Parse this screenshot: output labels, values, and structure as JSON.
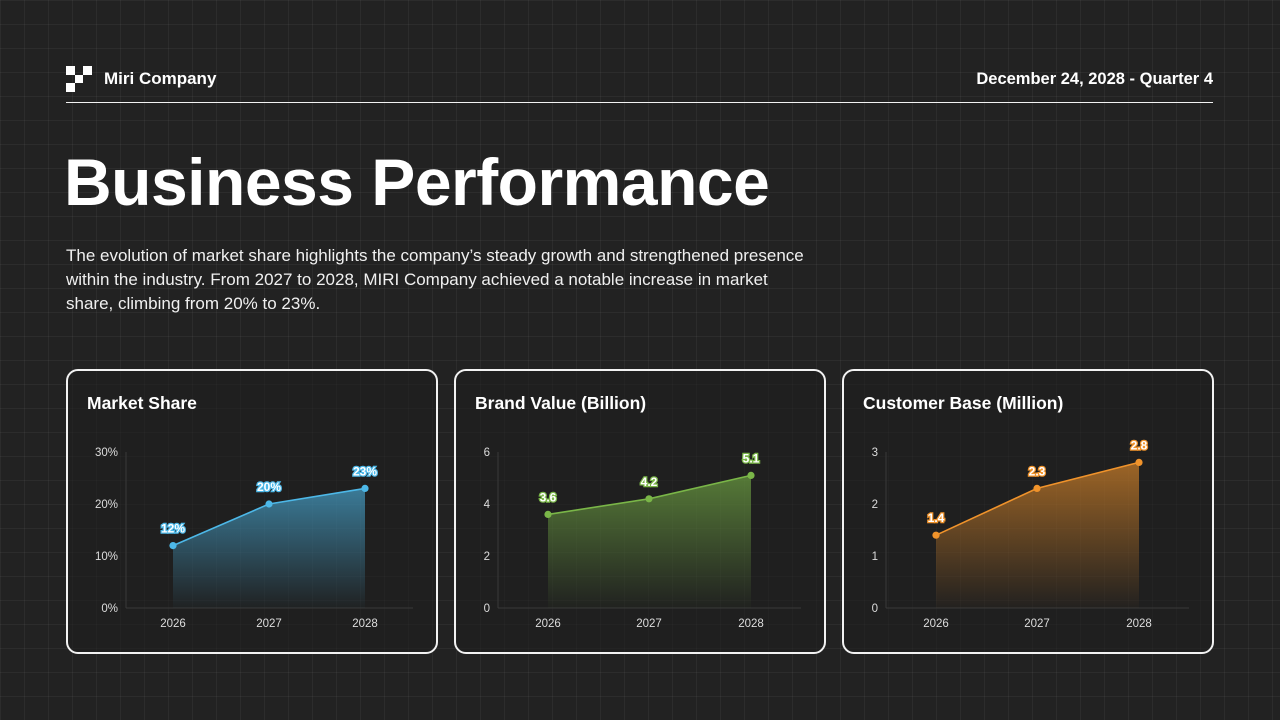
{
  "header": {
    "brand_name": "Miri Company",
    "logo_icon": "pixel-logo-icon",
    "date": "December 24, 2028 - Quarter 4"
  },
  "page": {
    "title": "Business Performance",
    "description": "The evolution of market share highlights the company’s steady growth and strengthened presence within the industry. From 2027 to 2028, MIRI Company achieved a notable increase in market share, climbing from 20% to 23%."
  },
  "colors": {
    "background": "#222222",
    "market_share": "#4db8e8",
    "brand_value": "#7ab648",
    "customer_base": "#f0932b"
  },
  "chart_data": [
    {
      "type": "area",
      "title": "Market Share",
      "categories": [
        "2026",
        "2027",
        "2028"
      ],
      "values": [
        12,
        20,
        23
      ],
      "data_labels": [
        "12%",
        "20%",
        "23%"
      ],
      "yticks": [
        "0%",
        "10%",
        "20%",
        "30%"
      ],
      "ylim": [
        0,
        30
      ],
      "xlabel": "",
      "ylabel": "",
      "color": "#4db8e8",
      "grid": false,
      "legend": "none"
    },
    {
      "type": "area",
      "title": "Brand Value (Billion)",
      "categories": [
        "2026",
        "2027",
        "2028"
      ],
      "values": [
        3.6,
        4.2,
        5.1
      ],
      "data_labels": [
        "3.6",
        "4.2",
        "5.1"
      ],
      "yticks": [
        "0",
        "2",
        "4",
        "6"
      ],
      "ylim": [
        0,
        6
      ],
      "xlabel": "",
      "ylabel": "",
      "color": "#7ab648",
      "grid": false,
      "legend": "none"
    },
    {
      "type": "area",
      "title": "Customer Base (Million)",
      "categories": [
        "2026",
        "2027",
        "2028"
      ],
      "values": [
        1.4,
        2.3,
        2.8
      ],
      "data_labels": [
        "1.4",
        "2.3",
        "2.8"
      ],
      "yticks": [
        "0",
        "1",
        "2",
        "3"
      ],
      "ylim": [
        0,
        3
      ],
      "xlabel": "",
      "ylabel": "",
      "color": "#f0932b",
      "grid": false,
      "legend": "none"
    }
  ]
}
